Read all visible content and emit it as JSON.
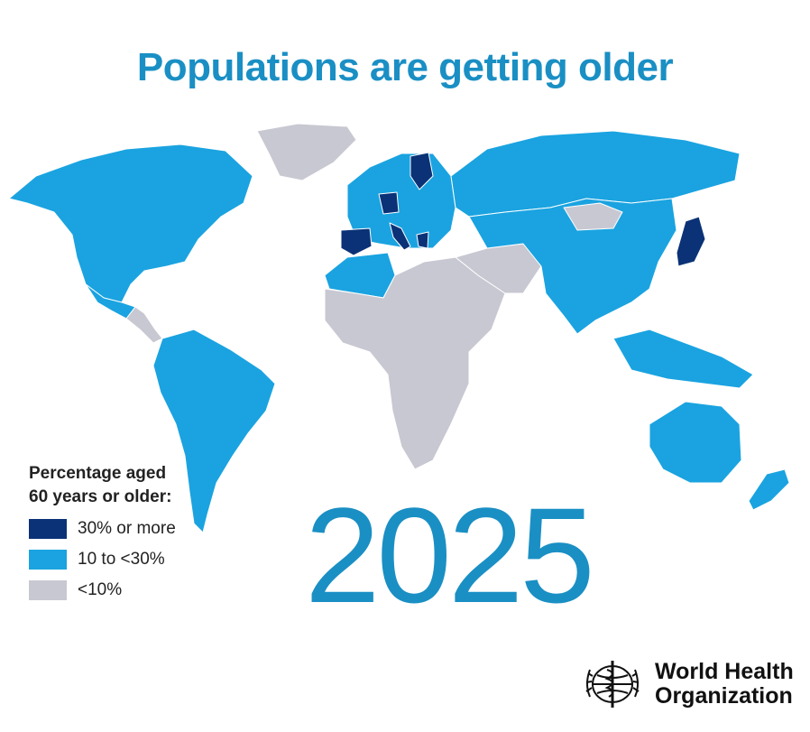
{
  "title": "Populations are getting older",
  "year": "2025",
  "legend": {
    "title_line1": "Percentage aged",
    "title_line2": "60 years or older:",
    "items": [
      {
        "label": "30% or more",
        "color": "#0b3277"
      },
      {
        "label": "10 to <30%",
        "color": "#1aa3e0"
      },
      {
        "label": "<10%",
        "color": "#c8c8d2"
      }
    ]
  },
  "colors": {
    "high": "#0b3277",
    "mid": "#1aa3e0",
    "low": "#c8c8d2",
    "title": "#1a8fc4"
  },
  "regions": {
    "north_america": "mid",
    "greenland": "low",
    "central_america": "low",
    "south_america": "mid",
    "europe": "mid",
    "spain_italy_germany_finland_greece": "high",
    "russia": "mid",
    "africa": "low",
    "north_africa": "mid",
    "middle_east": "low",
    "asia": "mid",
    "mongolia": "low",
    "japan": "high",
    "southeast_asia": "mid",
    "australia": "mid",
    "new_zealand": "mid"
  },
  "logo": {
    "line1": "World Health",
    "line2": "Organization",
    "icon": "who-emblem-icon"
  }
}
